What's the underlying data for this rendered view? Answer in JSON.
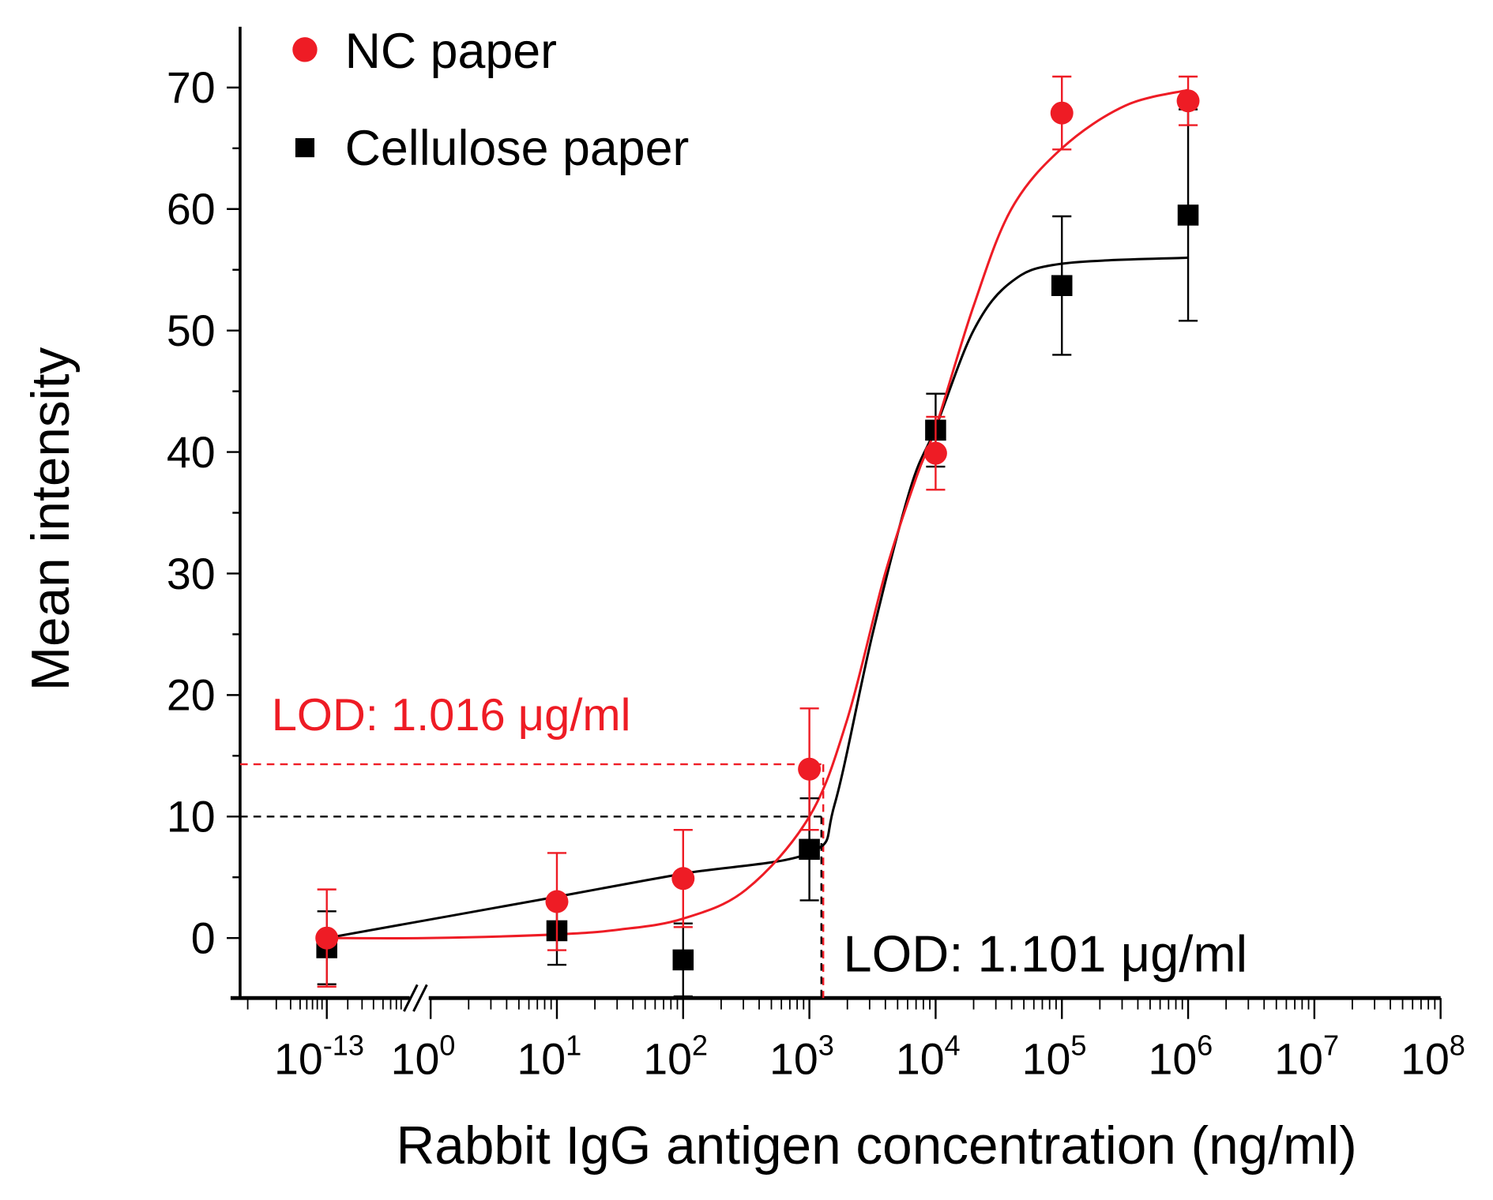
{
  "chart_data": {
    "type": "scatter",
    "title": "",
    "xlabel": "Rabbit IgG antigen concentration (ng/ml)",
    "ylabel": "Mean intensity",
    "x_scale": "log",
    "x_axis_break": "between 10^-13 and 10^0",
    "x_tick_labels": [
      {
        "base": "10",
        "exp": "-13",
        "log": -13
      },
      {
        "base": "10",
        "exp": "0",
        "log": 0
      },
      {
        "base": "10",
        "exp": "1",
        "log": 1
      },
      {
        "base": "10",
        "exp": "2",
        "log": 2
      },
      {
        "base": "10",
        "exp": "3",
        "log": 3
      },
      {
        "base": "10",
        "exp": "4",
        "log": 4
      },
      {
        "base": "10",
        "exp": "5",
        "log": 5
      },
      {
        "base": "10",
        "exp": "6",
        "log": 6
      },
      {
        "base": "10",
        "exp": "7",
        "log": 7
      },
      {
        "base": "10",
        "exp": "8",
        "log": 8
      }
    ],
    "ylim": [
      -5,
      75
    ],
    "y_ticks": [
      0,
      10,
      20,
      30,
      40,
      50,
      60,
      70
    ],
    "grid": false,
    "legend_position": "top-left",
    "series": [
      {
        "name": "NC paper",
        "marker": "circle",
        "color": "#ee1c25",
        "x_log10": [
          -13,
          1,
          2,
          3,
          4,
          5,
          6
        ],
        "y": [
          0,
          3.0,
          4.9,
          13.9,
          39.9,
          67.9,
          68.9
        ],
        "error": [
          4,
          4,
          4,
          5,
          3,
          3,
          2
        ],
        "fit_curve": [
          [
            -13,
            0
          ],
          [
            0,
            0
          ],
          [
            1,
            0.3
          ],
          [
            1.5,
            0.7
          ],
          [
            2,
            1.6
          ],
          [
            2.5,
            4
          ],
          [
            3,
            10
          ],
          [
            3.3,
            18
          ],
          [
            3.6,
            30
          ],
          [
            3.85,
            38
          ],
          [
            4,
            42
          ],
          [
            4.3,
            52
          ],
          [
            4.6,
            60
          ],
          [
            5,
            65
          ],
          [
            5.5,
            68.5
          ],
          [
            6,
            69.8
          ]
        ]
      },
      {
        "name": "Cellulose paper",
        "marker": "square",
        "color": "#000000",
        "x_log10": [
          -13,
          1,
          2,
          3,
          4,
          5,
          6
        ],
        "y": [
          -0.8,
          0.6,
          -1.8,
          7.3,
          41.8,
          53.7,
          59.5
        ],
        "error": [
          3,
          2.8,
          3,
          4.2,
          3,
          5.7,
          8.7
        ],
        "fit_curve": [
          [
            -13,
            0
          ],
          [
            1,
            3.4
          ],
          [
            2,
            5.3
          ],
          [
            3,
            7
          ],
          [
            3.2,
            11
          ],
          [
            3.5,
            25
          ],
          [
            3.8,
            37
          ],
          [
            4,
            42
          ],
          [
            4.3,
            50
          ],
          [
            4.6,
            54
          ],
          [
            5,
            55.5
          ],
          [
            6,
            56
          ]
        ]
      }
    ],
    "annotations": [
      {
        "text": "LOD: 1.016 μg/ml",
        "color": "#ee1c25",
        "line_y": 14.3,
        "line_x_log10": 3.11
      },
      {
        "text": "LOD: 1.101 μg/ml",
        "color": "#000000",
        "line_y": 10,
        "line_x_log10": 3.11
      }
    ]
  }
}
